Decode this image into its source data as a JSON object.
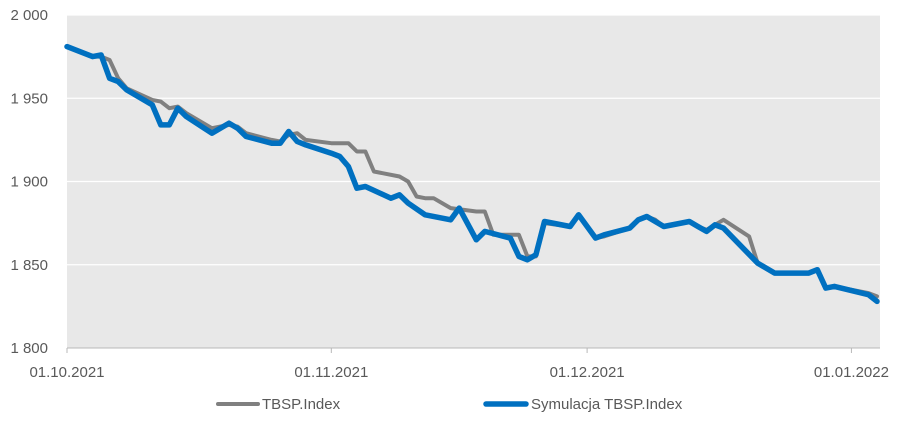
{
  "chart_data": {
    "type": "line",
    "title": "",
    "xlabel": "",
    "ylabel": "",
    "ylim": [
      1800,
      2000
    ],
    "y_ticks": [
      1800,
      1850,
      1900,
      1950,
      2000
    ],
    "y_tick_labels": [
      "1 800",
      "1 850",
      "1 900",
      "1 950",
      "2 000"
    ],
    "x_start": "2021-10-01",
    "x_end": "2022-01-08",
    "x_ticks": [
      {
        "day": 0,
        "label": "01.10.2021"
      },
      {
        "day": 31,
        "label": "01.11.2021"
      },
      {
        "day": 61,
        "label": "01.12.2021"
      },
      {
        "day": 92,
        "label": "01.01.2022"
      }
    ],
    "grid": "horizontal",
    "legend": "bottom",
    "series": [
      {
        "name": "TBSP.Index",
        "color": "#808080",
        "points": [
          [
            0,
            1981
          ],
          [
            3,
            1975
          ],
          [
            4,
            1975
          ],
          [
            5,
            1973
          ],
          [
            6,
            1962
          ],
          [
            7,
            1956
          ],
          [
            10,
            1949
          ],
          [
            11,
            1948
          ],
          [
            12,
            1944
          ],
          [
            13,
            1945
          ],
          [
            14,
            1941
          ],
          [
            17,
            1932
          ],
          [
            19,
            1934
          ],
          [
            20,
            1933
          ],
          [
            21,
            1929
          ],
          [
            24,
            1925
          ],
          [
            25,
            1924
          ],
          [
            26,
            1928
          ],
          [
            27,
            1929
          ],
          [
            28,
            1925
          ],
          [
            31,
            1923
          ],
          [
            32,
            1923
          ],
          [
            33,
            1923
          ],
          [
            34,
            1918
          ],
          [
            35,
            1918
          ],
          [
            36,
            1906
          ],
          [
            39,
            1903
          ],
          [
            40,
            1900
          ],
          [
            41,
            1891
          ],
          [
            42,
            1890
          ],
          [
            43,
            1890
          ],
          [
            45,
            1884
          ],
          [
            48,
            1882
          ],
          [
            49,
            1882
          ],
          [
            50,
            1868
          ],
          [
            53,
            1868
          ],
          [
            54,
            1855
          ],
          [
            55,
            1855
          ],
          [
            56,
            1875
          ],
          [
            59,
            1873
          ],
          [
            60,
            1880
          ],
          [
            62,
            1866
          ],
          [
            63,
            1867
          ],
          [
            66,
            1872
          ],
          [
            67,
            1877
          ],
          [
            68,
            1879
          ],
          [
            69,
            1877
          ],
          [
            70,
            1873
          ],
          [
            73,
            1876
          ],
          [
            74,
            1873
          ],
          [
            75,
            1871
          ],
          [
            76,
            1874
          ],
          [
            77,
            1877
          ],
          [
            80,
            1867
          ],
          [
            81,
            1851
          ],
          [
            83,
            1845
          ],
          [
            84,
            1845
          ],
          [
            87,
            1845
          ],
          [
            88,
            1847
          ],
          [
            89,
            1836
          ],
          [
            90,
            1837
          ],
          [
            94,
            1833
          ],
          [
            95,
            1831
          ]
        ]
      },
      {
        "name": "Symulacja TBSP.Index",
        "color": "#0070C0",
        "points": [
          [
            0,
            1981
          ],
          [
            3,
            1975
          ],
          [
            4,
            1976
          ],
          [
            5,
            1962
          ],
          [
            6,
            1960
          ],
          [
            7,
            1955
          ],
          [
            10,
            1946
          ],
          [
            11,
            1934
          ],
          [
            12,
            1934
          ],
          [
            13,
            1944
          ],
          [
            14,
            1939
          ],
          [
            17,
            1929
          ],
          [
            19,
            1935
          ],
          [
            20,
            1932
          ],
          [
            21,
            1927
          ],
          [
            24,
            1923
          ],
          [
            25,
            1923
          ],
          [
            26,
            1930
          ],
          [
            27,
            1924
          ],
          [
            28,
            1922
          ],
          [
            31,
            1917
          ],
          [
            32,
            1915
          ],
          [
            33,
            1909
          ],
          [
            34,
            1896
          ],
          [
            35,
            1897
          ],
          [
            38,
            1890
          ],
          [
            39,
            1892
          ],
          [
            40,
            1887
          ],
          [
            42,
            1880
          ],
          [
            45,
            1877
          ],
          [
            46,
            1884
          ],
          [
            48,
            1865
          ],
          [
            49,
            1870
          ],
          [
            52,
            1866
          ],
          [
            53,
            1855
          ],
          [
            54,
            1853
          ],
          [
            55,
            1856
          ],
          [
            56,
            1876
          ],
          [
            59,
            1873
          ],
          [
            60,
            1880
          ],
          [
            62,
            1866
          ],
          [
            63,
            1868
          ],
          [
            66,
            1872
          ],
          [
            67,
            1877
          ],
          [
            68,
            1879
          ],
          [
            69,
            1876
          ],
          [
            70,
            1873
          ],
          [
            73,
            1876
          ],
          [
            74,
            1873
          ],
          [
            75,
            1870
          ],
          [
            76,
            1874
          ],
          [
            77,
            1872
          ],
          [
            81,
            1851
          ],
          [
            83,
            1845
          ],
          [
            87,
            1845
          ],
          [
            88,
            1847
          ],
          [
            89,
            1836
          ],
          [
            90,
            1837
          ],
          [
            94,
            1832
          ],
          [
            95,
            1828
          ]
        ]
      }
    ]
  }
}
